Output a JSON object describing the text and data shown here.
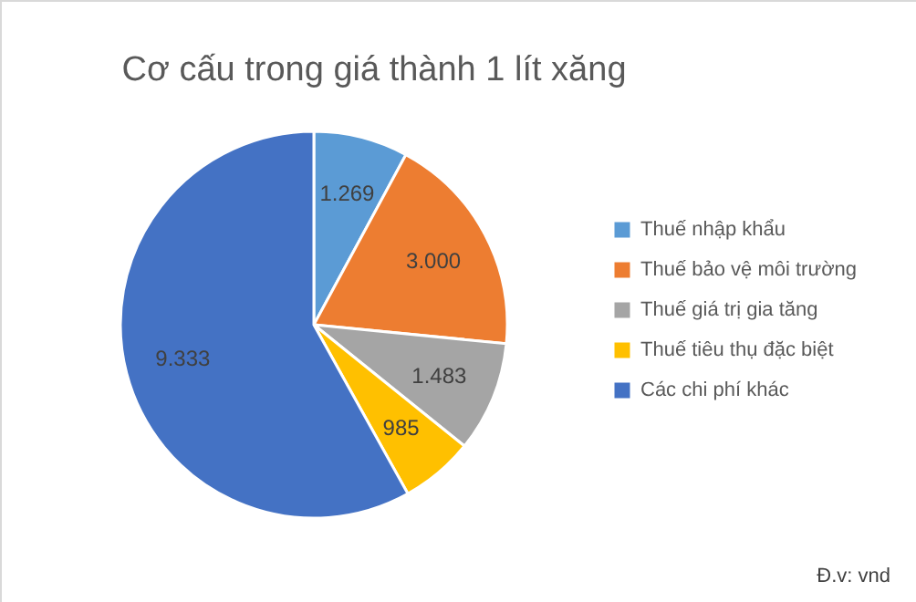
{
  "chart_data": {
    "type": "pie",
    "title": "Cơ cấu trong giá thành 1 lít xăng",
    "categories": [
      "Thuế nhập khẩu",
      "Thuế bảo vệ môi trường",
      "Thuế giá trị gia tăng",
      "Thuế tiêu thụ đặc biệt",
      "Các chi phí khác"
    ],
    "values": [
      1269,
      3000,
      1483,
      985,
      9333
    ],
    "value_labels": [
      "1.269",
      "3.000",
      "1.483",
      "985",
      "9.333"
    ],
    "colors": [
      "#5b9bd5",
      "#ed7d31",
      "#a5a5a5",
      "#ffc000",
      "#4472c4"
    ],
    "legend": "right",
    "annotations": [
      "Đ.v: vnd"
    ]
  }
}
